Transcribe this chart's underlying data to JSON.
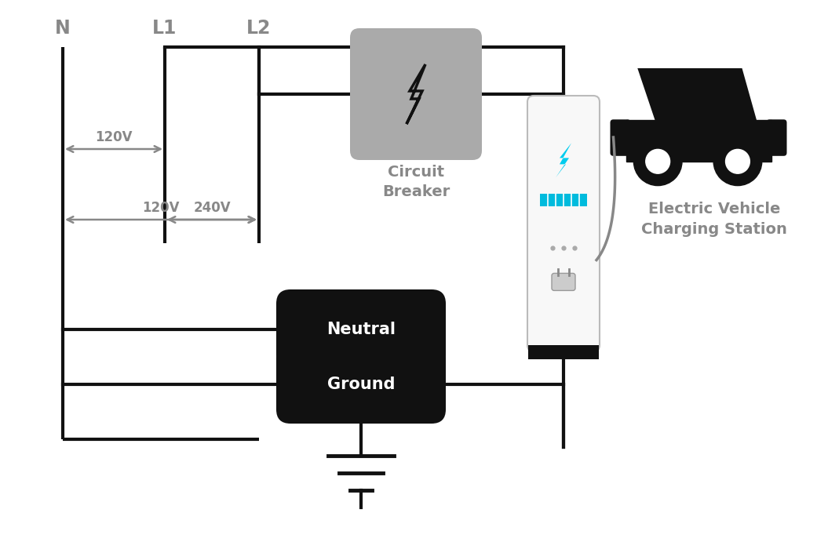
{
  "bg_color": "#ffffff",
  "line_color": "#111111",
  "line_width": 3.0,
  "label_color": "#888888",
  "N_label": "N",
  "L1_label": "L1",
  "L2_label": "L2",
  "v120_1_label": "120V",
  "v240_label": "240V",
  "v120_2_label": "120V",
  "circuit_breaker_label": "Circuit\nBreaker",
  "ev_station_label": "Electric Vehicle\nCharging Station",
  "neutral_label": "Neutral",
  "ground_label": "Ground",
  "cb_color": "#aaaaaa",
  "ev_bolt_color": "#00ccee",
  "ev_bar_color": "#00bbdd"
}
